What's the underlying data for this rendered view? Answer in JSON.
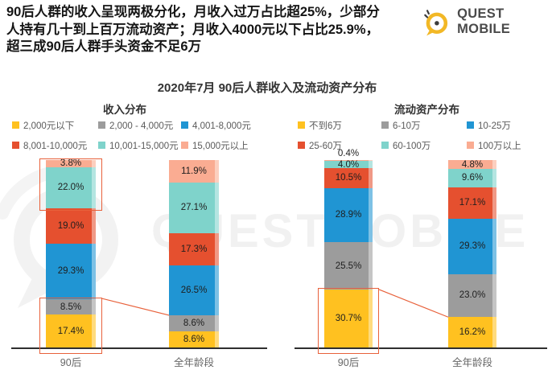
{
  "title": "2020年7月 90后人群收入及流动资产分布",
  "header": {
    "lines": [
      "90后人群的收入呈现两极分化，月收入过万占比超25%，少部分",
      "人持有几十到上百万流动资产；月收入4000元以下占比25.9%，",
      "超三成90后人群手头资金不足6万"
    ]
  },
  "branding": {
    "logo_text": "QUEST MOBILE",
    "watermark_text": "QUESTMOBILE",
    "logo_yellow": "#f2b826",
    "logo_dark": "#3c3c3c"
  },
  "colors": {
    "highlight": "#e8613b",
    "axis": "#2f2f2f"
  },
  "chart_data": [
    {
      "type": "bar",
      "stacked": true,
      "title": "收入分布",
      "unit": "%",
      "ylim": [
        0,
        100
      ],
      "categories": [
        "90后",
        "全年龄段"
      ],
      "series": [
        {
          "name": "2,000元以下",
          "color": "#ffc120",
          "values": [
            17.4,
            8.6
          ]
        },
        {
          "name": "2,000 - 4,000元",
          "color": "#9c9c9c",
          "values": [
            8.5,
            8.6
          ]
        },
        {
          "name": "4,001-8,000元",
          "color": "#2095d3",
          "values": [
            29.3,
            26.5
          ]
        },
        {
          "name": "8,001-10,000元",
          "color": "#e5502f",
          "values": [
            19.0,
            17.3
          ]
        },
        {
          "name": "10,001-15,000元",
          "color": "#7fd3cb",
          "values": [
            22.0,
            27.1
          ]
        },
        {
          "name": "15,000元以上",
          "color": "#faac92",
          "values": [
            3.8,
            11.9
          ]
        }
      ]
    },
    {
      "type": "bar",
      "stacked": true,
      "title": "流动资产分布",
      "unit": "%",
      "ylim": [
        0,
        100
      ],
      "categories": [
        "90后",
        "全年龄段"
      ],
      "series": [
        {
          "name": "不到6万",
          "color": "#ffc120",
          "values": [
            30.7,
            16.2
          ]
        },
        {
          "name": "6-10万",
          "color": "#9c9c9c",
          "values": [
            25.5,
            23.0
          ]
        },
        {
          "name": "10-25万",
          "color": "#2095d3",
          "values": [
            28.9,
            29.3
          ]
        },
        {
          "name": "25-60万",
          "color": "#e5502f",
          "values": [
            10.5,
            17.1
          ]
        },
        {
          "name": "60-100万",
          "color": "#7fd3cb",
          "values": [
            4.0,
            9.6
          ]
        },
        {
          "name": "100万以上",
          "color": "#faac92",
          "values": [
            0.4,
            4.8
          ]
        }
      ]
    }
  ],
  "annotations": [
    {
      "chart": 0,
      "bar": 0,
      "series_from": 4,
      "series_to": 5
    },
    {
      "chart": 0,
      "bar": 0,
      "series_from": 0,
      "series_to": 1,
      "connect_to_bar": 1,
      "connect_series_top": 1
    },
    {
      "chart": 1,
      "bar": 0,
      "series_from": 0,
      "series_to": 0,
      "connect_to_bar": 1,
      "connect_series_top": 0
    }
  ]
}
